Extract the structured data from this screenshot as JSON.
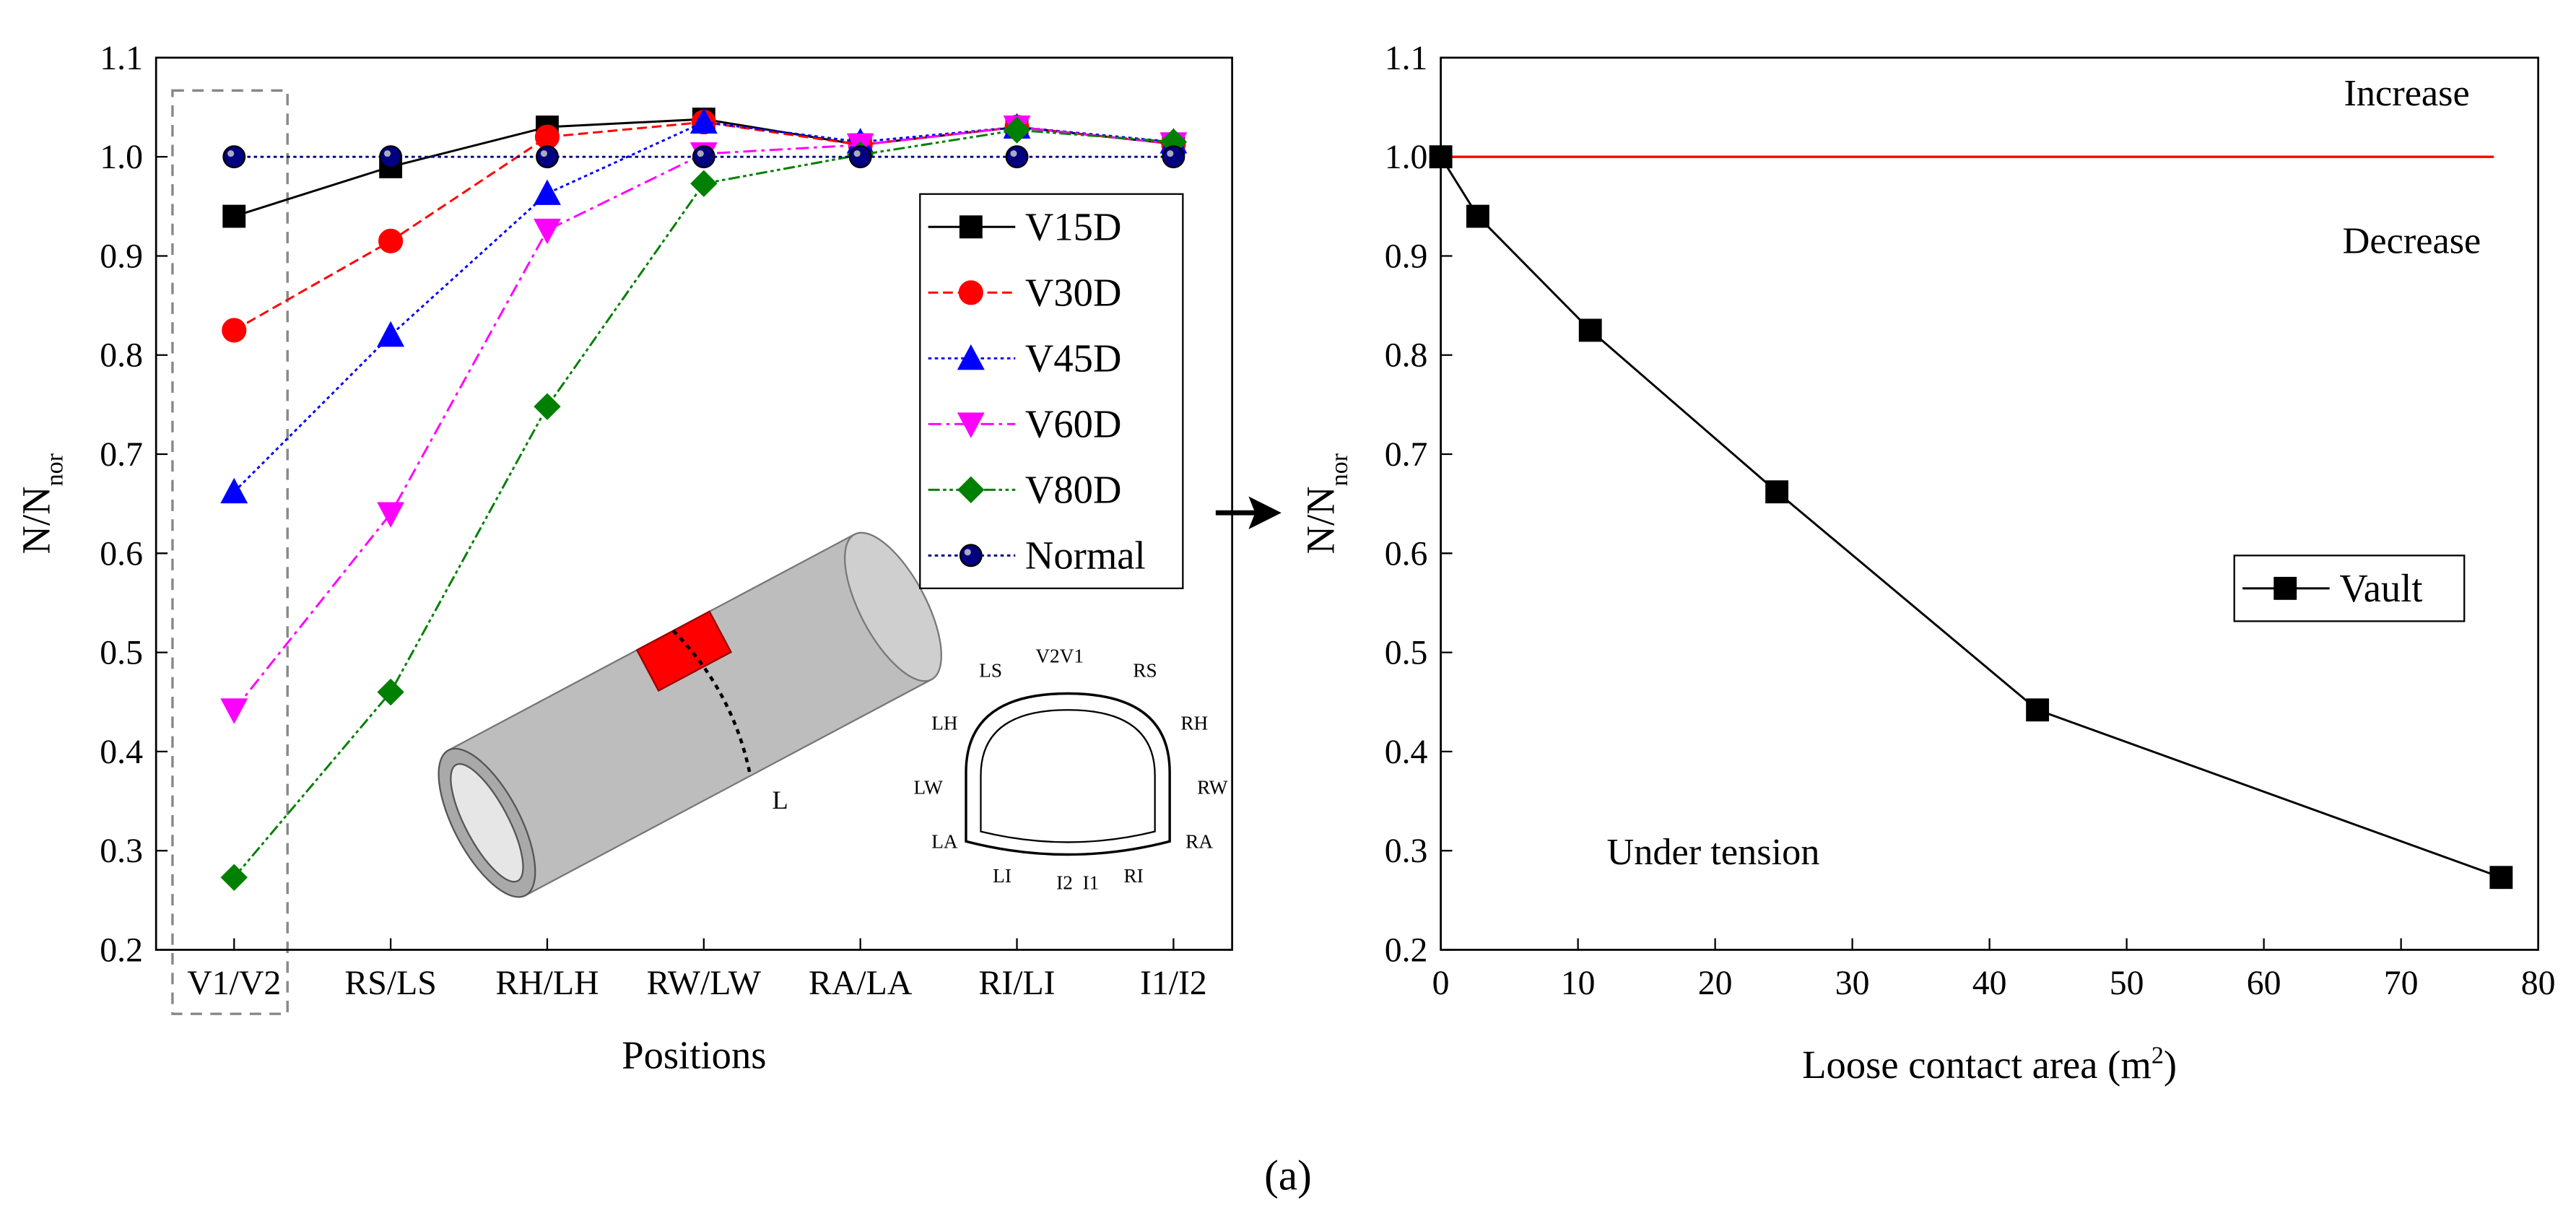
{
  "chart_data": [
    {
      "type": "line",
      "x_label": "Positions",
      "y_label": "N/N",
      "y_label_sub": "nor",
      "categories": [
        "V1/V2",
        "RS/LS",
        "RH/LH",
        "RW/LW",
        "RA/LA",
        "RI/LI",
        "I1/I2"
      ],
      "series": [
        {
          "name": "V15D",
          "color": "#000000",
          "marker": "square",
          "dash": "solid",
          "values": [
            0.94,
            0.99,
            1.03,
            1.038,
            1.012,
            1.03,
            1.013
          ]
        },
        {
          "name": "V30D",
          "color": "#ff0000",
          "marker": "circle",
          "dash": "dashed",
          "values": [
            0.825,
            0.915,
            1.02,
            1.035,
            1.012,
            1.03,
            1.013
          ]
        },
        {
          "name": "V45D",
          "color": "#0000ff",
          "marker": "triangle-up",
          "dash": "dotted",
          "values": [
            0.662,
            0.82,
            0.963,
            1.035,
            1.015,
            1.03,
            1.015
          ]
        },
        {
          "name": "V60D",
          "color": "#ff00ff",
          "marker": "triangle-down",
          "dash": "dashdot",
          "values": [
            0.442,
            0.64,
            0.926,
            1.003,
            1.012,
            1.03,
            1.013
          ]
        },
        {
          "name": "V80D",
          "color": "#008000",
          "marker": "diamond",
          "dash": "dashdotdot",
          "values": [
            0.273,
            0.46,
            0.748,
            0.973,
            1.002,
            1.027,
            1.015
          ]
        },
        {
          "name": "Normal",
          "color": "#000080",
          "marker": "sphere",
          "dash": "dotted",
          "values": [
            1,
            1,
            1,
            1,
            1,
            1,
            1
          ]
        }
      ],
      "ylim": [
        0.2,
        1.1
      ],
      "yticks": [
        0.2,
        0.3,
        0.4,
        0.5,
        0.6,
        0.7,
        0.8,
        0.9,
        {
          "value": 1,
          "label": "1.0"
        },
        1.1
      ],
      "legend": "right",
      "annotations": [
        "L",
        "LS",
        "V2V1",
        "RS",
        "LH",
        "RH",
        "LW",
        "RW",
        "LA",
        "RA",
        "LI",
        "I2",
        "I1",
        "RI"
      ]
    },
    {
      "type": "line",
      "x_label": [
        "Loose contact area (m",
        "2",
        ")"
      ],
      "y_label": "N/N",
      "y_label_sub": "nor",
      "x": [
        0,
        2.7,
        10.9,
        24.5,
        43.5,
        77.3
      ],
      "series": [
        {
          "name": "Vault",
          "color": "#000000",
          "marker": "square",
          "dash": "solid",
          "values": [
            1,
            0.94,
            0.825,
            0.662,
            0.442,
            0.273
          ]
        }
      ],
      "xlim": [
        0,
        80
      ],
      "xticks": [
        0,
        10,
        20,
        30,
        40,
        50,
        60,
        70,
        80
      ],
      "ylim": [
        0.2,
        1.1
      ],
      "yticks": [
        0.2,
        0.3,
        0.4,
        0.5,
        0.6,
        0.7,
        0.8,
        0.9,
        {
          "value": 1,
          "label": "1.0"
        },
        1.1
      ],
      "reference_line": {
        "value": 1,
        "color": "#ff0000"
      },
      "legend": "right",
      "annotations": [
        "Increase",
        "Decrease",
        "Under tension"
      ]
    }
  ],
  "caption": "(a)"
}
